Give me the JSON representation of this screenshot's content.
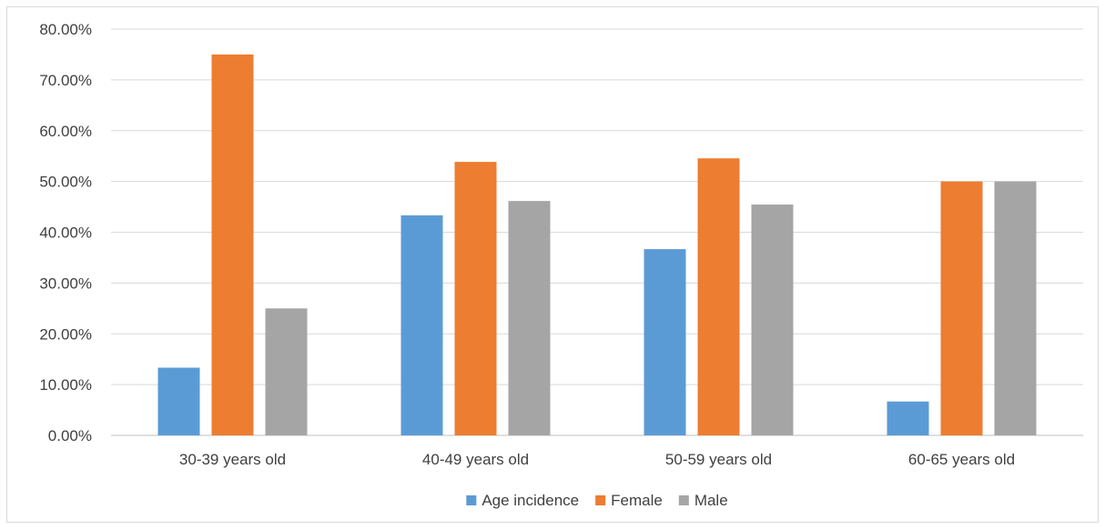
{
  "chart_data": {
    "type": "bar",
    "title": "",
    "xlabel": "",
    "ylabel": "",
    "categories": [
      "30-39 years old",
      "40-49 years old",
      "50-59 years old",
      "60-65 years old"
    ],
    "series": [
      {
        "name": "Age incidence",
        "color": "#5b9bd5",
        "values": [
          13.33,
          43.33,
          36.67,
          6.67
        ]
      },
      {
        "name": "Female",
        "color": "#ed7d31",
        "values": [
          75.0,
          53.85,
          54.55,
          50.0
        ]
      },
      {
        "name": "Male",
        "color": "#a5a5a5",
        "values": [
          25.0,
          46.15,
          45.45,
          50.0
        ]
      }
    ],
    "ylim": [
      0,
      80
    ],
    "yticks": [
      "0.00%",
      "10.00%",
      "20.00%",
      "30.00%",
      "40.00%",
      "50.00%",
      "60.00%",
      "70.00%",
      "80.00%"
    ],
    "grid": true,
    "legend_position": "bottom"
  }
}
